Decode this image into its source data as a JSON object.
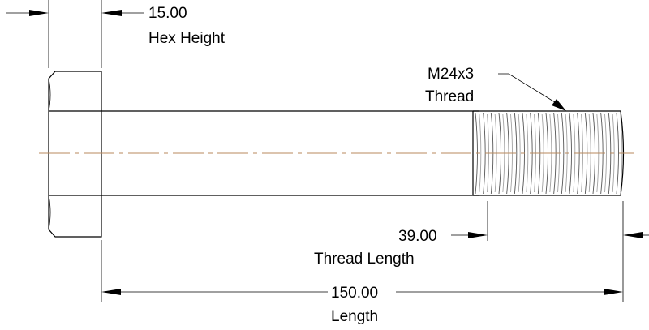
{
  "dimensions": {
    "hex_height": {
      "value": "15.00",
      "label": "Hex Height"
    },
    "thread_spec": {
      "value": "M24x3",
      "label": "Thread"
    },
    "thread_length": {
      "value": "39.00",
      "label": "Thread Length"
    },
    "length": {
      "value": "150.00",
      "label": "Length"
    }
  },
  "colors": {
    "centerline": "#b98a5e",
    "line": "#000000",
    "background": "#ffffff"
  }
}
